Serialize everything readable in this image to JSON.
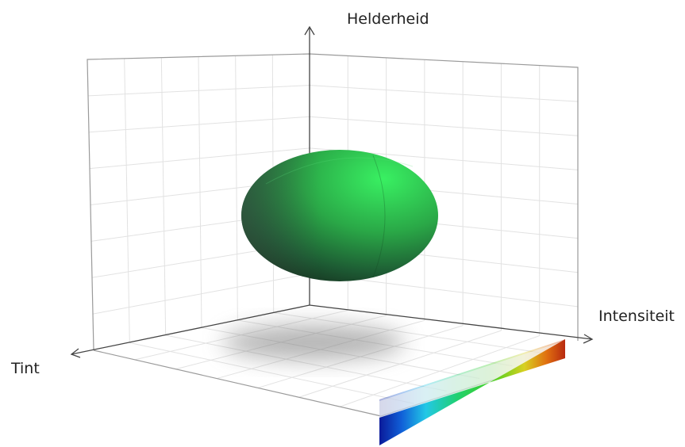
{
  "axes": {
    "vertical": "Helderheid",
    "right": "Intensiteit",
    "left": "Tint"
  }
}
